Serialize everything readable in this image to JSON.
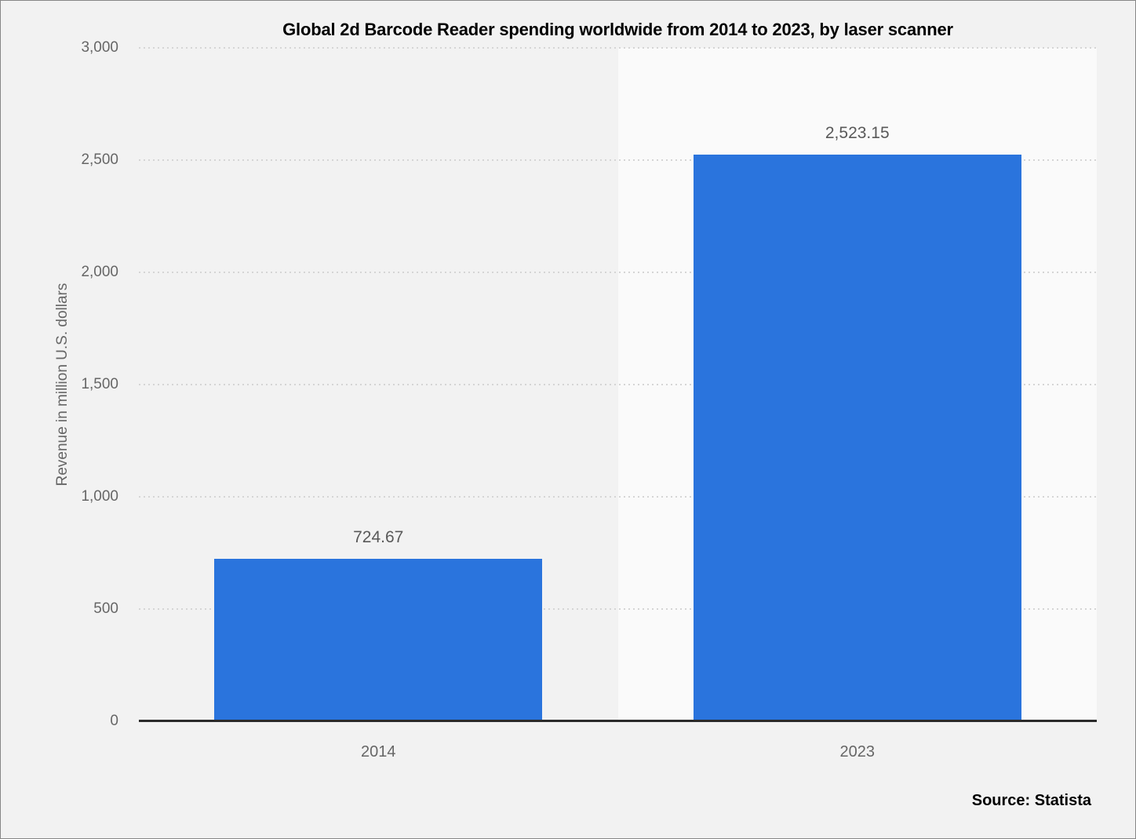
{
  "chart_data": {
    "type": "bar",
    "title": "Global 2d Barcode Reader spending worldwide from 2014 to 2023, by laser scanner",
    "categories": [
      "2014",
      "2023"
    ],
    "values": [
      724.67,
      2523.15
    ],
    "value_labels": [
      "724.67",
      "2,523.15"
    ],
    "xlabel": "",
    "ylabel": "Revenue in million U.S. dollars",
    "ylim": [
      0,
      3000
    ],
    "yticks": [
      {
        "value": 0,
        "label": "0"
      },
      {
        "value": 500,
        "label": "500"
      },
      {
        "value": 1000,
        "label": "1,000"
      },
      {
        "value": 1500,
        "label": "1,500"
      },
      {
        "value": 2000,
        "label": "2,000"
      },
      {
        "value": 2500,
        "label": "2,500"
      },
      {
        "value": 3000,
        "label": "3,000"
      }
    ],
    "grid": "horizontal-dotted",
    "legend": "none"
  },
  "colors": {
    "page_background": "#f2f2f2",
    "alt_band_background": "#fafafa",
    "bar_fill": "#2a74dd",
    "axis_line": "#2b2b2b",
    "gridline": "#d5d5d5",
    "tick_text": "#666666",
    "value_label_text": "#595959",
    "title_text": "#000000"
  },
  "source": {
    "label": "Source: Statista"
  }
}
